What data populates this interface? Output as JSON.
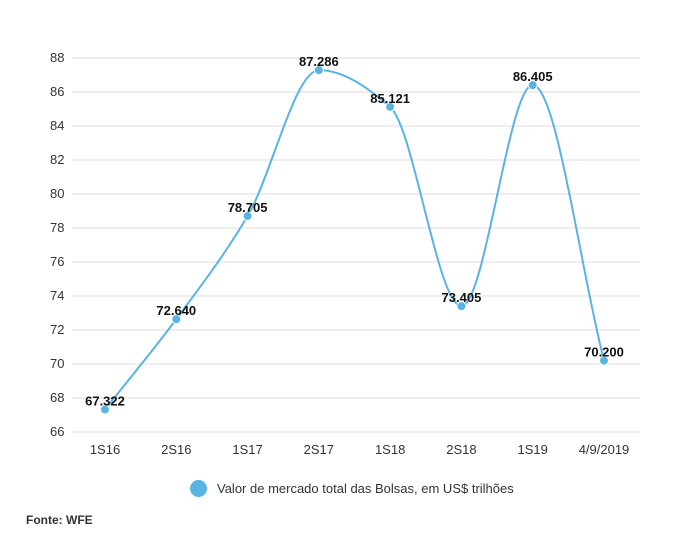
{
  "chart_data": {
    "type": "line",
    "categories": [
      "1S16",
      "2S16",
      "1S17",
      "2S17",
      "1S18",
      "2S18",
      "1S19",
      "4/9/2019"
    ],
    "series": [
      {
        "name": "Valor de mercado total das Bolsas, em US$ trilhões",
        "values": [
          67.322,
          72.64,
          78.705,
          87.286,
          85.121,
          73.405,
          86.405,
          70.2
        ],
        "labels": [
          "67.322",
          "72.640",
          "78.705",
          "87.286",
          "85.121",
          "73.405",
          "86.405",
          "70.200"
        ]
      }
    ],
    "yticks": [
      "66",
      "68",
      "70",
      "72",
      "74",
      "76",
      "78",
      "80",
      "82",
      "84",
      "86",
      "88"
    ],
    "ylim": [
      66,
      88
    ],
    "grid": true,
    "legend_position": "bottom"
  },
  "colors": {
    "series": "#5ab4e3",
    "grid": "#dddddd",
    "text": "#333333"
  },
  "legend": {
    "label": "Valor de mercado total das Bolsas, em US$ trilhões"
  },
  "source": "Fonte: WFE"
}
